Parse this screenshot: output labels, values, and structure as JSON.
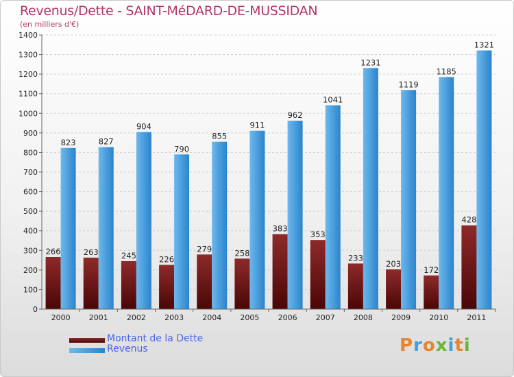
{
  "title": "Revenus/Dette - SAINT-MéDARD-DE-MUSSIDAN",
  "subtitle": "(en milliers d'€)",
  "logo_text": "Proxiti",
  "colors": {
    "title": "#b4346a",
    "dette_top": "#8e2a2a",
    "dette_bottom": "#4a0606",
    "revenus_left": "#6db8ec",
    "revenus_right": "#2a84cc",
    "legend_text": "#4a64e8"
  },
  "chart_data": {
    "type": "bar",
    "categories": [
      "2000",
      "2001",
      "2002",
      "2003",
      "2004",
      "2005",
      "2006",
      "2007",
      "2008",
      "2009",
      "2010",
      "2011"
    ],
    "series": [
      {
        "name": "Montant de la Dette",
        "values": [
          266,
          263,
          245,
          226,
          279,
          258,
          383,
          353,
          233,
          203,
          172,
          428
        ]
      },
      {
        "name": "Revenus",
        "values": [
          823,
          827,
          904,
          790,
          855,
          911,
          962,
          1041,
          1231,
          1119,
          1185,
          1321
        ]
      }
    ],
    "ylim": [
      0,
      1400
    ],
    "yticks": [
      0,
      100,
      200,
      300,
      400,
      500,
      600,
      700,
      800,
      900,
      1000,
      1100,
      1200,
      1300,
      1400
    ],
    "grid": true,
    "legend_position": "bottom-left"
  }
}
